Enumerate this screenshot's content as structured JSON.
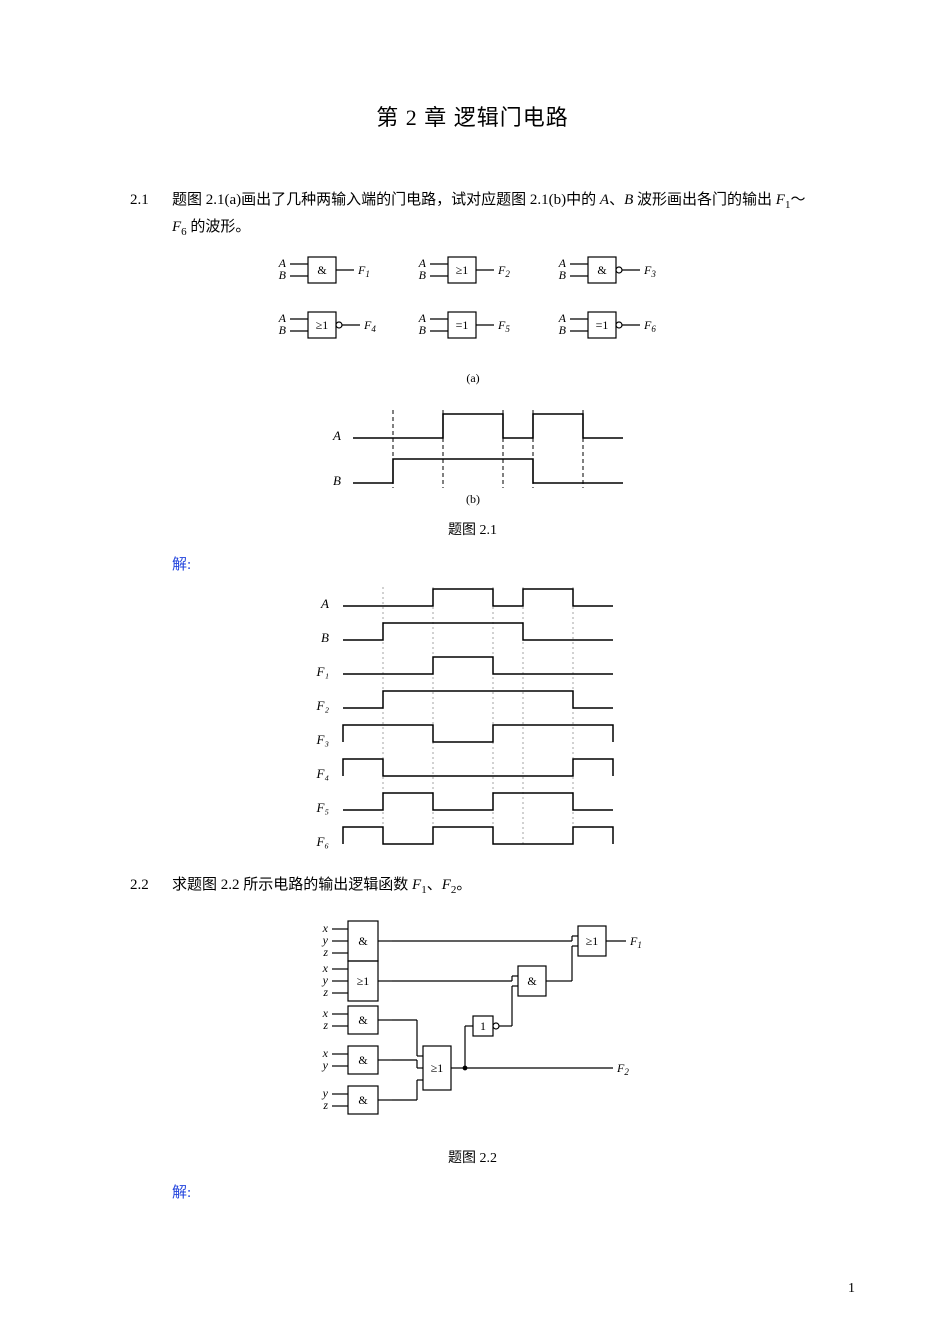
{
  "page_number": "1",
  "chapter_title": "第 2 章  逻辑门电路",
  "answer_label": "解:",
  "problems": {
    "p21": {
      "number": "2.1",
      "text_parts": [
        "题图 2.1(a)画出了几种两输入端的门电路，试对应题图 2.1(b)中的 ",
        "A",
        "、",
        "B",
        " 波形画出各门的输出 ",
        "F",
        "1",
        "～",
        "F",
        "6",
        " 的波形。"
      ],
      "caption": "题图 2.1"
    },
    "p22": {
      "number": "2.2",
      "text_parts": [
        "求题图 2.2 所示电路的输出逻辑函数 ",
        "F",
        "1",
        "、",
        "F",
        "2",
        "。"
      ],
      "caption": "题图 2.2"
    }
  },
  "fig21a": {
    "gates": [
      {
        "sym": "&",
        "out": "F",
        "outIdx": "1",
        "inv": false
      },
      {
        "sym": "≥1",
        "out": "F",
        "outIdx": "2",
        "inv": false
      },
      {
        "sym": "&",
        "out": "F",
        "outIdx": "3",
        "inv": true
      },
      {
        "sym": "≥1",
        "out": "F",
        "outIdx": "4",
        "inv": true
      },
      {
        "sym": "=1",
        "out": "F",
        "outIdx": "5",
        "inv": false
      },
      {
        "sym": "=1",
        "out": "F",
        "outIdx": "6",
        "inv": true
      }
    ],
    "inputs": [
      "A",
      "B"
    ],
    "sub_caption": "(a)"
  },
  "fig21b": {
    "labels": [
      "A",
      "B"
    ],
    "sub_caption": "(b)",
    "t": [
      0,
      40,
      90,
      150,
      180,
      230,
      270
    ]
  },
  "solution21": {
    "labels": [
      "A",
      "B",
      "F₁",
      "F₂",
      "F₃",
      "F₄",
      "F₅",
      "F₆"
    ],
    "t": [
      0,
      40,
      90,
      150,
      180,
      230,
      270
    ],
    "rows": [
      {
        "label": "A",
        "high": [
          [
            90,
            150
          ],
          [
            180,
            230
          ]
        ]
      },
      {
        "label": "B",
        "high": [
          [
            40,
            180
          ]
        ]
      },
      {
        "label": "F₁",
        "high": [
          [
            90,
            150
          ]
        ]
      },
      {
        "label": "F₂",
        "high": [
          [
            40,
            230
          ]
        ]
      },
      {
        "label": "F₃",
        "high": [
          [
            0,
            90
          ],
          [
            150,
            270
          ]
        ]
      },
      {
        "label": "F₄",
        "high": [
          [
            0,
            40
          ],
          [
            230,
            270
          ]
        ]
      },
      {
        "label": "F₅",
        "high": [
          [
            40,
            90
          ],
          [
            150,
            230
          ]
        ]
      },
      {
        "label": "F₆",
        "high": [
          [
            0,
            40
          ],
          [
            90,
            150
          ],
          [
            230,
            270
          ]
        ]
      }
    ]
  },
  "fig22": {
    "inputs": [
      "x",
      "y",
      "z"
    ],
    "outputs": [
      "F₁",
      "F₂"
    ],
    "column_gates": [
      {
        "inputs": [
          "x",
          "y",
          "z"
        ],
        "sym": "&"
      },
      {
        "inputs": [
          "x",
          "y",
          "z"
        ],
        "sym": "≥1"
      },
      {
        "inputs": [
          "x",
          "z"
        ],
        "sym": "&"
      },
      {
        "inputs": [
          "x",
          "y"
        ],
        "sym": "&"
      },
      {
        "inputs": [
          "y",
          "z"
        ],
        "sym": "&"
      }
    ]
  },
  "colors": {
    "stroke": "#000000",
    "dashed": "#000000",
    "grid_dotted": "#9a9a9a",
    "accent": "#2244dd",
    "background": "#ffffff"
  }
}
